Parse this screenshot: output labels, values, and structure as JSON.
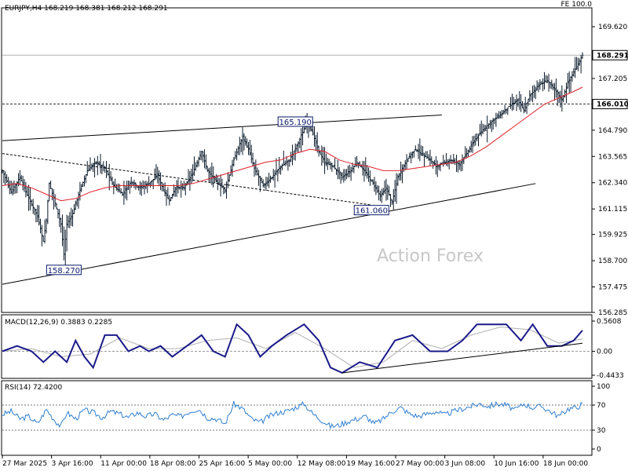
{
  "header": {
    "symbol_line": "EURJPY,H4  168.219 168.381 168.212 168.291",
    "top_right": "FE 100.0"
  },
  "watermark": "Action Forex",
  "colors": {
    "price_bar": "#0b1a2b",
    "ma": "#e0202a",
    "macd_line": "#1a1a8a",
    "macd_signal": "#b0b0b0",
    "rsi": "#2f7fd1",
    "grid": "#000000"
  },
  "chart_data": [
    {
      "type": "ohlc",
      "title": "EURJPY,H4",
      "ohlc_readout": {
        "open": 168.219,
        "high": 168.381,
        "low": 168.212,
        "close": 168.291
      },
      "ylim": [
        156.285,
        170.5
      ],
      "y_ticks": [
        169.62,
        168.291,
        167.205,
        166.01,
        164.79,
        163.565,
        162.34,
        161.115,
        159.925,
        158.7,
        157.475,
        156.285
      ],
      "y_tick_labels": [
        "169.620",
        "168.291",
        "167.205",
        "166.010",
        "164.790",
        "163.565",
        "162.340",
        "161.115",
        "159.925",
        "158.700",
        "157.475",
        "156.285"
      ],
      "current_price_label": "168.291",
      "level_label": "166.010",
      "x_tick_labels": [
        "27 Mar 2025",
        "3 Apr 16:00",
        "11 Apr 00:00",
        "18 Apr 08:00",
        "25 Apr 16:00",
        "5 May 00:00",
        "12 May 08:00",
        "19 May 16:00",
        "27 May 00:00",
        "3 Jun 08:00",
        "10 Jun 16:00",
        "18 Jun 00:00"
      ],
      "close_path": [
        [
          0,
          162.9
        ],
        [
          6,
          161.9
        ],
        [
          12,
          162.6
        ],
        [
          18,
          161.6
        ],
        [
          24,
          160.8
        ],
        [
          28,
          159.6
        ],
        [
          30,
          160.6
        ],
        [
          32,
          162.3
        ],
        [
          36,
          161.4
        ],
        [
          40,
          160.4
        ],
        [
          42,
          159.0
        ],
        [
          44,
          160.4
        ],
        [
          48,
          160.9
        ],
        [
          52,
          161.8
        ],
        [
          58,
          162.9
        ],
        [
          64,
          163.3
        ],
        [
          70,
          163.0
        ],
        [
          76,
          162.2
        ],
        [
          82,
          161.8
        ],
        [
          88,
          162.4
        ],
        [
          94,
          162.1
        ],
        [
          100,
          162.3
        ],
        [
          106,
          162.7
        ],
        [
          110,
          162.0
        ],
        [
          114,
          161.5
        ],
        [
          118,
          162.1
        ],
        [
          124,
          162.1
        ],
        [
          130,
          162.8
        ],
        [
          136,
          163.8
        ],
        [
          140,
          162.9
        ],
        [
          146,
          162.4
        ],
        [
          152,
          162.0
        ],
        [
          158,
          163.4
        ],
        [
          164,
          164.5
        ],
        [
          168,
          163.9
        ],
        [
          172,
          163.0
        ],
        [
          178,
          162.2
        ],
        [
          184,
          162.6
        ],
        [
          190,
          163.1
        ],
        [
          196,
          163.4
        ],
        [
          202,
          164.2
        ],
        [
          208,
          165.2
        ],
        [
          212,
          164.6
        ],
        [
          216,
          163.8
        ],
        [
          220,
          163.3
        ],
        [
          226,
          163.1
        ],
        [
          232,
          162.6
        ],
        [
          238,
          162.9
        ],
        [
          242,
          163.3
        ],
        [
          246,
          163.0
        ],
        [
          250,
          162.6
        ],
        [
          254,
          162.2
        ],
        [
          258,
          161.7
        ],
        [
          262,
          162.1
        ],
        [
          266,
          161.4
        ],
        [
          270,
          162.6
        ],
        [
          276,
          163.4
        ],
        [
          282,
          163.9
        ],
        [
          288,
          163.6
        ],
        [
          292,
          163.4
        ],
        [
          296,
          163.1
        ],
        [
          300,
          163.2
        ],
        [
          306,
          163.4
        ],
        [
          312,
          163.2
        ],
        [
          318,
          163.8
        ],
        [
          322,
          164.3
        ],
        [
          328,
          164.8
        ],
        [
          334,
          165.2
        ],
        [
          340,
          165.5
        ],
        [
          346,
          165.9
        ],
        [
          352,
          166.2
        ],
        [
          356,
          165.7
        ],
        [
          360,
          166.4
        ],
        [
          366,
          166.9
        ],
        [
          372,
          167.1
        ],
        [
          378,
          166.6
        ],
        [
          382,
          166.2
        ],
        [
          386,
          167.0
        ],
        [
          390,
          167.5
        ],
        [
          396,
          168.291
        ]
      ],
      "moving_average": [
        [
          0,
          162.2
        ],
        [
          10,
          162.3
        ],
        [
          20,
          162.1
        ],
        [
          30,
          161.8
        ],
        [
          40,
          161.5
        ],
        [
          50,
          161.6
        ],
        [
          60,
          161.9
        ],
        [
          70,
          162.1
        ],
        [
          80,
          162.2
        ],
        [
          90,
          162.2
        ],
        [
          100,
          162.2
        ],
        [
          110,
          162.2
        ],
        [
          120,
          162.2
        ],
        [
          130,
          162.3
        ],
        [
          140,
          162.5
        ],
        [
          150,
          162.7
        ],
        [
          160,
          162.9
        ],
        [
          170,
          163.1
        ],
        [
          180,
          163.3
        ],
        [
          190,
          163.4
        ],
        [
          200,
          163.7
        ],
        [
          210,
          163.9
        ],
        [
          220,
          163.8
        ],
        [
          230,
          163.4
        ],
        [
          240,
          163.2
        ],
        [
          250,
          163.1
        ],
        [
          260,
          162.9
        ],
        [
          270,
          162.9
        ],
        [
          280,
          163.0
        ],
        [
          290,
          163.1
        ],
        [
          300,
          163.2
        ],
        [
          310,
          163.3
        ],
        [
          320,
          163.6
        ],
        [
          330,
          164.0
        ],
        [
          340,
          164.5
        ],
        [
          350,
          165.0
        ],
        [
          360,
          165.5
        ],
        [
          370,
          166.0
        ],
        [
          380,
          166.3
        ],
        [
          390,
          166.6
        ],
        [
          396,
          166.8
        ]
      ],
      "trendlines": [
        {
          "from": [
            0,
            164.3
          ],
          "to": [
            300,
            165.5
          ]
        },
        {
          "from": [
            0,
            157.6
          ],
          "to": [
            364,
            162.3
          ]
        },
        {
          "from": [
            0,
            163.7
          ],
          "to": [
            252,
            161.3
          ],
          "style": "dashed"
        }
      ],
      "horizontal_levels": [
        {
          "value": 166.01,
          "style": "dashed"
        },
        {
          "value": 168.291,
          "style": "solid"
        }
      ],
      "annotations": [
        {
          "label": "165.190",
          "x": 200,
          "y": 165.19
        },
        {
          "label": "161.060",
          "x": 252,
          "y": 161.06
        },
        {
          "label": "158.270",
          "x": 42,
          "y": 158.27
        }
      ]
    },
    {
      "type": "line",
      "title": "MACD(12,26,9) 0.3883 0.2285",
      "macd_value": 0.3883,
      "signal_value": 0.2285,
      "ylim": [
        -0.4433,
        0.5608
      ],
      "y_tick_labels": [
        "0.5608",
        "0.00",
        "-0.4433"
      ],
      "macd_line": [
        [
          0,
          0.0
        ],
        [
          10,
          0.1
        ],
        [
          20,
          0.0
        ],
        [
          28,
          -0.2
        ],
        [
          36,
          0.0
        ],
        [
          44,
          -0.2
        ],
        [
          50,
          0.2
        ],
        [
          56,
          -0.1
        ],
        [
          62,
          -0.3
        ],
        [
          70,
          0.3
        ],
        [
          78,
          0.3
        ],
        [
          86,
          0.0
        ],
        [
          94,
          0.1
        ],
        [
          100,
          0.0
        ],
        [
          108,
          0.1
        ],
        [
          116,
          -0.1
        ],
        [
          126,
          0.1
        ],
        [
          136,
          0.3
        ],
        [
          144,
          0.0
        ],
        [
          152,
          -0.1
        ],
        [
          160,
          0.5
        ],
        [
          168,
          0.3
        ],
        [
          176,
          -0.1
        ],
        [
          184,
          0.1
        ],
        [
          194,
          0.3
        ],
        [
          206,
          0.5
        ],
        [
          216,
          0.2
        ],
        [
          224,
          -0.3
        ],
        [
          232,
          -0.4
        ],
        [
          244,
          -0.2
        ],
        [
          256,
          -0.3
        ],
        [
          268,
          0.2
        ],
        [
          280,
          0.3
        ],
        [
          292,
          0.0
        ],
        [
          304,
          0.0
        ],
        [
          314,
          0.2
        ],
        [
          324,
          0.5
        ],
        [
          334,
          0.5
        ],
        [
          344,
          0.5
        ],
        [
          354,
          0.2
        ],
        [
          362,
          0.5
        ],
        [
          372,
          0.1
        ],
        [
          382,
          0.1
        ],
        [
          390,
          0.2
        ],
        [
          396,
          0.3883
        ]
      ],
      "signal_line": [
        [
          0,
          0.0
        ],
        [
          20,
          0.05
        ],
        [
          40,
          -0.1
        ],
        [
          60,
          -0.05
        ],
        [
          80,
          0.25
        ],
        [
          100,
          0.05
        ],
        [
          120,
          0.05
        ],
        [
          140,
          0.2
        ],
        [
          160,
          0.25
        ],
        [
          180,
          0.05
        ],
        [
          200,
          0.35
        ],
        [
          220,
          0.05
        ],
        [
          240,
          -0.3
        ],
        [
          260,
          -0.2
        ],
        [
          280,
          0.2
        ],
        [
          300,
          0.05
        ],
        [
          320,
          0.3
        ],
        [
          340,
          0.45
        ],
        [
          360,
          0.4
        ],
        [
          380,
          0.15
        ],
        [
          396,
          0.2285
        ]
      ],
      "trendline": {
        "from": [
          232,
          -0.4
        ],
        "to": [
          396,
          0.15
        ]
      }
    },
    {
      "type": "line",
      "title": "RSI(14) 72.4200",
      "rsi_value": 72.42,
      "ylim": [
        0,
        100
      ],
      "y_tick_labels": [
        "100",
        "70",
        "30",
        "0"
      ],
      "levels": [
        70,
        30
      ],
      "series": [
        [
          0,
          55
        ],
        [
          6,
          60
        ],
        [
          12,
          48
        ],
        [
          18,
          52
        ],
        [
          24,
          40
        ],
        [
          30,
          63
        ],
        [
          36,
          45
        ],
        [
          40,
          36
        ],
        [
          44,
          58
        ],
        [
          50,
          48
        ],
        [
          56,
          62
        ],
        [
          62,
          58
        ],
        [
          68,
          50
        ],
        [
          74,
          60
        ],
        [
          80,
          56
        ],
        [
          86,
          50
        ],
        [
          92,
          58
        ],
        [
          98,
          52
        ],
        [
          104,
          56
        ],
        [
          110,
          46
        ],
        [
          116,
          54
        ],
        [
          122,
          52
        ],
        [
          128,
          60
        ],
        [
          134,
          64
        ],
        [
          140,
          50
        ],
        [
          146,
          48
        ],
        [
          152,
          40
        ],
        [
          158,
          72
        ],
        [
          164,
          64
        ],
        [
          170,
          48
        ],
        [
          176,
          42
        ],
        [
          182,
          52
        ],
        [
          188,
          58
        ],
        [
          194,
          60
        ],
        [
          200,
          66
        ],
        [
          206,
          72
        ],
        [
          212,
          56
        ],
        [
          218,
          46
        ],
        [
          224,
          36
        ],
        [
          230,
          38
        ],
        [
          236,
          44
        ],
        [
          242,
          48
        ],
        [
          248,
          52
        ],
        [
          254,
          40
        ],
        [
          260,
          48
        ],
        [
          266,
          60
        ],
        [
          272,
          66
        ],
        [
          278,
          56
        ],
        [
          284,
          52
        ],
        [
          290,
          56
        ],
        [
          296,
          60
        ],
        [
          302,
          54
        ],
        [
          308,
          60
        ],
        [
          314,
          64
        ],
        [
          320,
          68
        ],
        [
          326,
          72
        ],
        [
          332,
          68
        ],
        [
          338,
          72
        ],
        [
          344,
          70
        ],
        [
          350,
          62
        ],
        [
          356,
          72
        ],
        [
          362,
          66
        ],
        [
          368,
          68
        ],
        [
          374,
          60
        ],
        [
          380,
          52
        ],
        [
          386,
          64
        ],
        [
          392,
          66
        ],
        [
          396,
          72.42
        ]
      ]
    }
  ]
}
